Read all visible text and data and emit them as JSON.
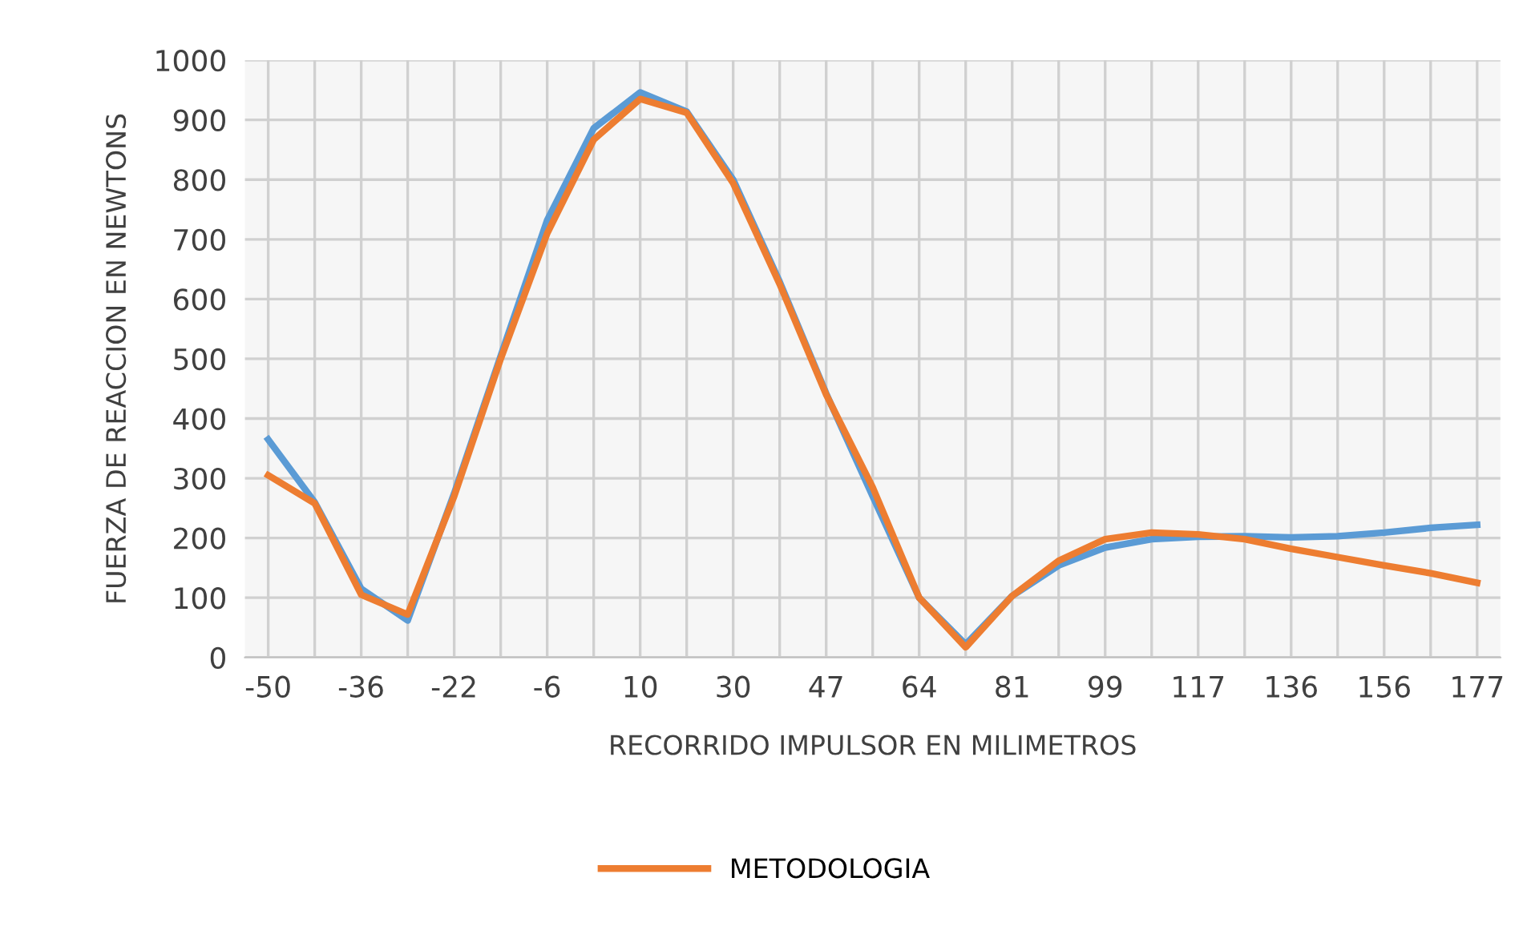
{
  "chart_data": {
    "type": "line",
    "xlabel": "RECORRIDO IMPULSOR EN MILIMETROS",
    "ylabel": "FUERZA DE REACCION EN NEWTONS",
    "categories": [
      "-50",
      null,
      "-36",
      null,
      "-22",
      null,
      "-6",
      null,
      "10",
      null,
      "30",
      null,
      "47",
      null,
      "64",
      null,
      "81",
      null,
      "99",
      null,
      "117",
      null,
      "136",
      null,
      "156",
      null,
      "177"
    ],
    "series": [
      {
        "color": "#5b9bd5",
        "values": [
          365,
          260,
          115,
          62,
          275,
          505,
          732,
          886,
          946,
          914,
          800,
          629,
          442,
          270,
          100,
          22,
          103,
          154,
          184,
          198,
          202,
          203,
          201,
          203,
          209,
          217,
          222
        ]
      },
      {
        "name": "METODOLOGIA",
        "color": "#ed7d31",
        "values": [
          305,
          258,
          105,
          72,
          270,
          500,
          710,
          867,
          935,
          912,
          794,
          625,
          440,
          285,
          100,
          17,
          103,
          162,
          198,
          209,
          206,
          198,
          182,
          168,
          154,
          141,
          125
        ]
      }
    ],
    "ylim": [
      0,
      1000
    ],
    "yticks": [
      0,
      100,
      200,
      300,
      400,
      500,
      600,
      700,
      800,
      900,
      1000
    ],
    "grid": true,
    "legend": "bottom",
    "marker": "none",
    "line_style": "solid"
  }
}
